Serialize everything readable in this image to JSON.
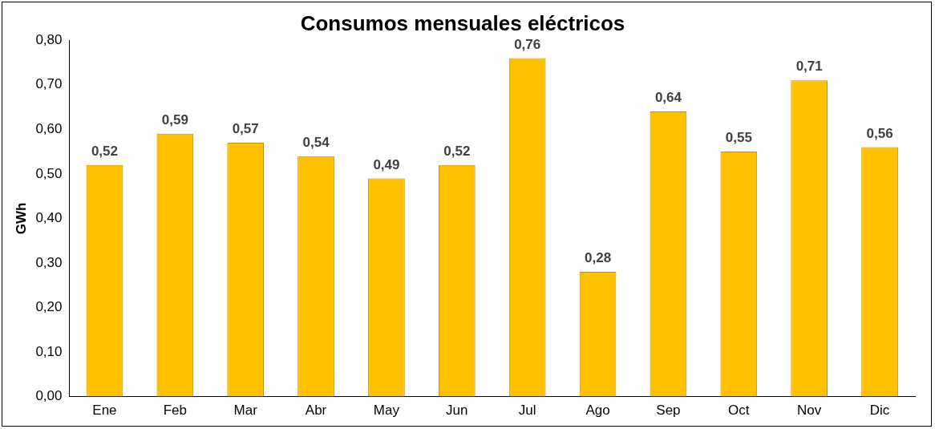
{
  "chart_data": {
    "type": "bar",
    "title": "Consumos mensuales eléctricos",
    "ylabel": "GWh",
    "categories": [
      "Ene",
      "Feb",
      "Mar",
      "Abr",
      "May",
      "Jun",
      "Jul",
      "Ago",
      "Sep",
      "Oct",
      "Nov",
      "Dic"
    ],
    "values": [
      0.52,
      0.59,
      0.57,
      0.54,
      0.49,
      0.52,
      0.76,
      0.28,
      0.64,
      0.55,
      0.71,
      0.56
    ],
    "value_labels": [
      "0,52",
      "0,59",
      "0,57",
      "0,54",
      "0,49",
      "0,52",
      "0,76",
      "0,28",
      "0,64",
      "0,55",
      "0,71",
      "0,56"
    ],
    "color": "#ffc000",
    "ylim": [
      0,
      0.8
    ],
    "yticks": [
      {
        "value": 0,
        "label": "0,00"
      },
      {
        "value": 0.1,
        "label": "0,10"
      },
      {
        "value": 0.2,
        "label": "0,20"
      },
      {
        "value": 0.3,
        "label": "0,30"
      },
      {
        "value": 0.4,
        "label": "0,40"
      },
      {
        "value": 0.5,
        "label": "0,50"
      },
      {
        "value": 0.6,
        "label": "0,60"
      },
      {
        "value": 0.7,
        "label": "0,70"
      },
      {
        "value": 0.8,
        "label": "0,80"
      }
    ],
    "grid": false,
    "legend": false
  }
}
